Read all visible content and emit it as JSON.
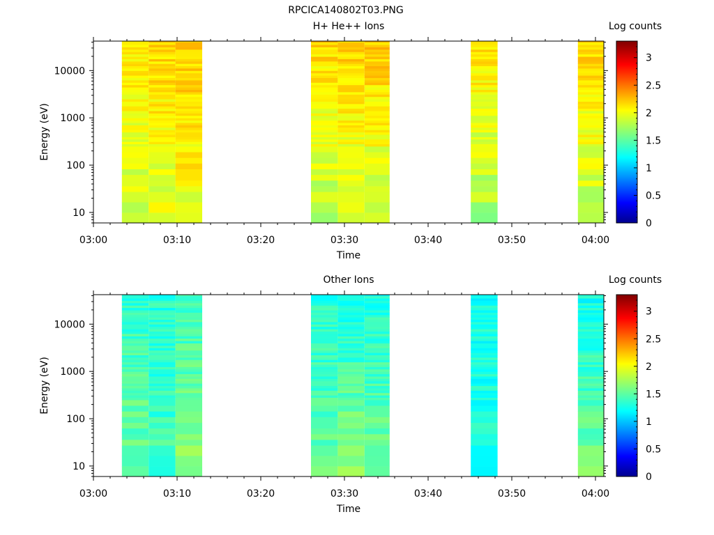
{
  "figure": {
    "filename": "RPCICA140802T03.PNG"
  },
  "chart_data": [
    {
      "type": "heatmap",
      "title": "H+ He++ Ions",
      "xlabel": "Time",
      "ylabel": "Energy (eV)",
      "y_scale": "log",
      "xlim": [
        "03:00",
        "04:01"
      ],
      "ylim": [
        6,
        42000
      ],
      "x_ticks": [
        "03:00",
        "03:10",
        "03:20",
        "03:30",
        "03:40",
        "03:50",
        "04:00"
      ],
      "y_ticks": [
        "10",
        "100",
        "1000",
        "10000"
      ],
      "colorbar": {
        "label": "Log counts",
        "range": [
          0,
          3.3
        ],
        "ticks": [
          "0",
          "0.5",
          "1",
          "1.5",
          "2",
          "2.5",
          "3"
        ]
      },
      "time_bins": [
        {
          "start": "03:03.4",
          "end": "03:06.6",
          "level_low": 1.85,
          "level_high": 2.15
        },
        {
          "start": "03:06.6",
          "end": "03:09.8",
          "level_low": 1.95,
          "level_high": 2.2
        },
        {
          "start": "03:09.8",
          "end": "03:13.0",
          "level_low": 2.0,
          "level_high": 2.25
        },
        {
          "start": "03:26.0",
          "end": "03:29.2",
          "level_low": 1.8,
          "level_high": 2.2
        },
        {
          "start": "03:29.2",
          "end": "03:32.4",
          "level_low": 1.85,
          "level_high": 2.25
        },
        {
          "start": "03:32.4",
          "end": "03:35.4",
          "level_low": 1.85,
          "level_high": 2.25
        },
        {
          "start": "03:45.1",
          "end": "03:48.3",
          "level_low": 1.75,
          "level_high": 2.2
        },
        {
          "start": "03:57.9",
          "end": "04:01.0",
          "level_low": 1.85,
          "level_high": 2.2
        }
      ],
      "grid": false
    },
    {
      "type": "heatmap",
      "title": "Other Ions",
      "xlabel": "Time",
      "ylabel": "Energy (eV)",
      "y_scale": "log",
      "xlim": [
        "03:00",
        "04:01"
      ],
      "ylim": [
        6,
        42000
      ],
      "x_ticks": [
        "03:00",
        "03:10",
        "03:20",
        "03:30",
        "03:40",
        "03:50",
        "04:00"
      ],
      "y_ticks": [
        "10",
        "100",
        "1000",
        "10000"
      ],
      "colorbar": {
        "label": "Log counts",
        "range": [
          0,
          3.3
        ],
        "ticks": [
          "0",
          "0.5",
          "1",
          "1.5",
          "2",
          "2.5",
          "3"
        ]
      },
      "time_bins": [
        {
          "start": "03:03.4",
          "end": "03:06.6",
          "level_low": 1.6,
          "level_high": 1.4
        },
        {
          "start": "03:06.6",
          "end": "03:09.8",
          "level_low": 1.45,
          "level_high": 1.35
        },
        {
          "start": "03:09.8",
          "end": "03:13.0",
          "level_low": 1.7,
          "level_high": 1.4
        },
        {
          "start": "03:26.0",
          "end": "03:29.2",
          "level_low": 1.55,
          "level_high": 1.35
        },
        {
          "start": "03:29.2",
          "end": "03:32.4",
          "level_low": 1.7,
          "level_high": 1.3
        },
        {
          "start": "03:32.4",
          "end": "03:35.4",
          "level_low": 1.6,
          "level_high": 1.35
        },
        {
          "start": "03:45.1",
          "end": "03:48.3",
          "level_low": 1.35,
          "level_high": 1.3
        },
        {
          "start": "03:57.9",
          "end": "04:01.0",
          "level_low": 1.6,
          "level_high": 1.3
        }
      ],
      "grid": false
    }
  ]
}
